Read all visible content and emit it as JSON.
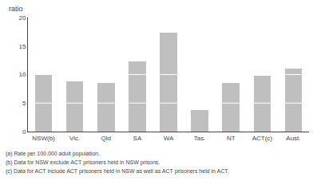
{
  "chart_data": {
    "type": "bar",
    "categories": [
      "NSW(b)",
      "Vic.",
      "Qld",
      "SA",
      "WA",
      "Tas.",
      "NT",
      "ACT(c)",
      "Aust."
    ],
    "values": [
      10.0,
      8.8,
      8.5,
      12.3,
      17.3,
      3.8,
      8.5,
      9.8,
      11.0
    ],
    "segment_breaks": [
      5,
      10
    ],
    "color": "#c0bfbf",
    "ylabel": "ratio",
    "ylim": [
      0,
      20
    ],
    "yticks": [
      0,
      5,
      10,
      15,
      20
    ],
    "grid": false,
    "annotations": [
      "(a) Rate per 100,000 adult population.",
      "(b) Data for NSW exclude ACT prisoners held in NSW prisons.",
      "(c) Data for ACT include ACT prisoners held in NSW as well as ACT prisoners held in ACT."
    ]
  }
}
